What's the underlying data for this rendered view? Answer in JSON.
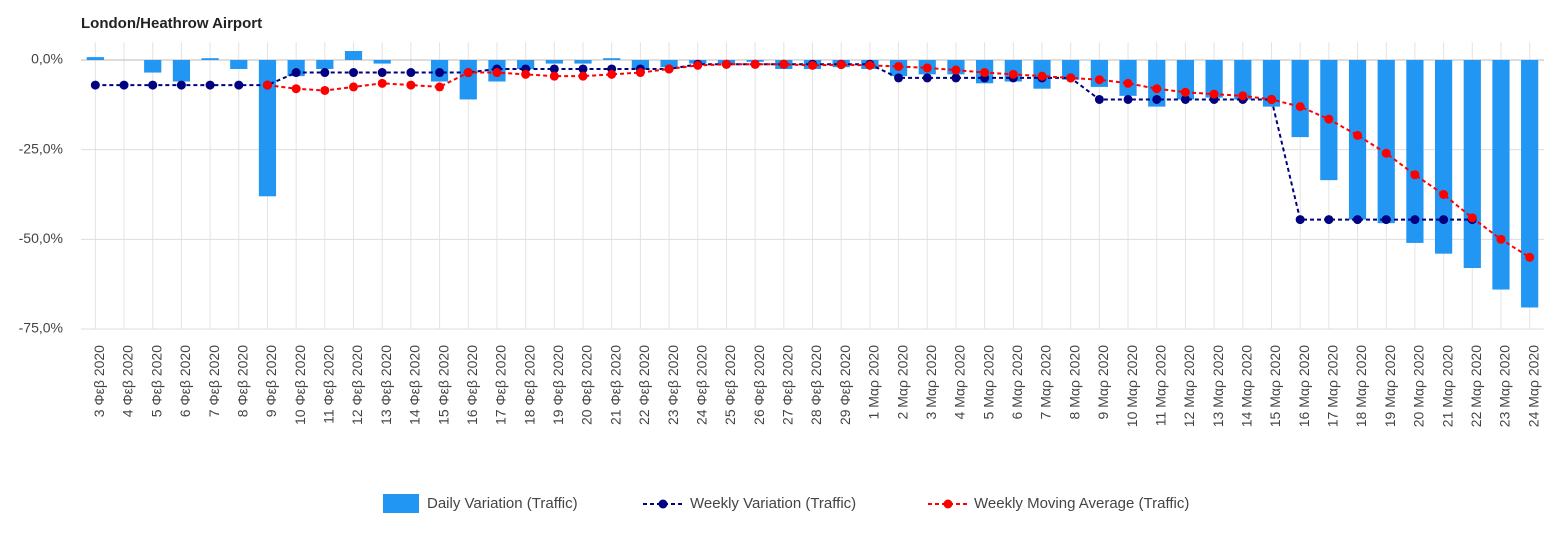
{
  "chart_data": {
    "type": "bar",
    "title": "London/Heathrow Airport",
    "categories": [
      "3 Φεβ 2020",
      "4 Φεβ 2020",
      "5 Φεβ 2020",
      "6 Φεβ 2020",
      "7 Φεβ 2020",
      "8 Φεβ 2020",
      "9 Φεβ 2020",
      "10 Φεβ 2020",
      "11 Φεβ 2020",
      "12 Φεβ 2020",
      "13 Φεβ 2020",
      "14 Φεβ 2020",
      "15 Φεβ 2020",
      "16 Φεβ 2020",
      "17 Φεβ 2020",
      "18 Φεβ 2020",
      "19 Φεβ 2020",
      "20 Φεβ 2020",
      "21 Φεβ 2020",
      "22 Φεβ 2020",
      "23 Φεβ 2020",
      "24 Φεβ 2020",
      "25 Φεβ 2020",
      "26 Φεβ 2020",
      "27 Φεβ 2020",
      "28 Φεβ 2020",
      "29 Φεβ 2020",
      "1 Μαρ 2020",
      "2 Μαρ 2020",
      "3 Μαρ 2020",
      "4 Μαρ 2020",
      "5 Μαρ 2020",
      "6 Μαρ 2020",
      "7 Μαρ 2020",
      "8 Μαρ 2020",
      "9 Μαρ 2020",
      "10 Μαρ 2020",
      "11 Μαρ 2020",
      "12 Μαρ 2020",
      "13 Μαρ 2020",
      "14 Μαρ 2020",
      "15 Μαρ 2020",
      "16 Μαρ 2020",
      "17 Μαρ 2020",
      "18 Μαρ 2020",
      "19 Μαρ 2020",
      "20 Μαρ 2020",
      "21 Μαρ 2020",
      "22 Μαρ 2020",
      "23 Μαρ 2020",
      "24 Μαρ 2020"
    ],
    "series": [
      {
        "name": "Daily Variation (Traffic)",
        "type": "bar",
        "color": "#2196f3",
        "values": [
          0.8,
          0,
          -3.5,
          -6,
          0.5,
          -2.5,
          -38,
          -4.5,
          -2.5,
          2.5,
          -1,
          0,
          -6,
          -11,
          -6,
          -2.5,
          -1,
          -1,
          0.5,
          -2.5,
          -2,
          -1,
          -1,
          -0.5,
          -2.5,
          -2.5,
          -2,
          -2.5,
          -4.5,
          -4,
          -4,
          -6.5,
          -6,
          -8,
          -5.5,
          -7.5,
          -10,
          -13,
          -11,
          -10.5,
          -11,
          -13,
          -21.5,
          -33.5,
          -44.5,
          -45.5,
          -51,
          -54,
          -58,
          -64,
          -69
        ]
      },
      {
        "name": "Weekly Variation (Traffic)",
        "type": "line",
        "color": "#000080",
        "values": [
          -7,
          -7,
          -7,
          -7,
          -7,
          -7,
          -7,
          -3.5,
          -3.5,
          -3.5,
          -3.5,
          -3.5,
          -3.5,
          -3.5,
          -2.5,
          -2.5,
          -2.5,
          -2.5,
          -2.5,
          -2.5,
          -2.5,
          -1.2,
          -1.2,
          -1.2,
          -1.2,
          -1.2,
          -1.2,
          -1.2,
          -5,
          -5,
          -5,
          -5,
          -5,
          -5,
          -5,
          -11,
          -11,
          -11,
          -11,
          -11,
          -11,
          -11,
          -44.5,
          -44.5,
          -44.5,
          -44.5,
          -44.5,
          -44.5,
          -44.5,
          null,
          null
        ]
      },
      {
        "name": "Weekly Moving Average (Traffic)",
        "type": "line",
        "color": "#ff0000",
        "values": [
          null,
          null,
          null,
          null,
          null,
          null,
          -7,
          -8,
          -8.5,
          -7.5,
          -6.5,
          -7,
          -7.5,
          -3.5,
          -3.5,
          -4,
          -4.5,
          -4.5,
          -4,
          -3.5,
          -2.5,
          -1.5,
          -1.2,
          -1.2,
          -1.2,
          -1.5,
          -1.3,
          -1.5,
          -1.8,
          -2.2,
          -2.8,
          -3.5,
          -4,
          -4.5,
          -5,
          -5.5,
          -6.5,
          -8,
          -9,
          -9.5,
          -10,
          -11,
          -13,
          -16.5,
          -21,
          -26,
          -32,
          -37.5,
          -44,
          -50,
          -55
        ]
      }
    ],
    "ylim": [
      -75,
      5
    ],
    "yticks": [
      {
        "value": 0,
        "label": "0,0%"
      },
      {
        "value": -25,
        "label": "-25,0%"
      },
      {
        "value": -50,
        "label": "-50,0%"
      },
      {
        "value": -75,
        "label": "-75,0%"
      }
    ],
    "grid": true,
    "legend": "bottom"
  }
}
